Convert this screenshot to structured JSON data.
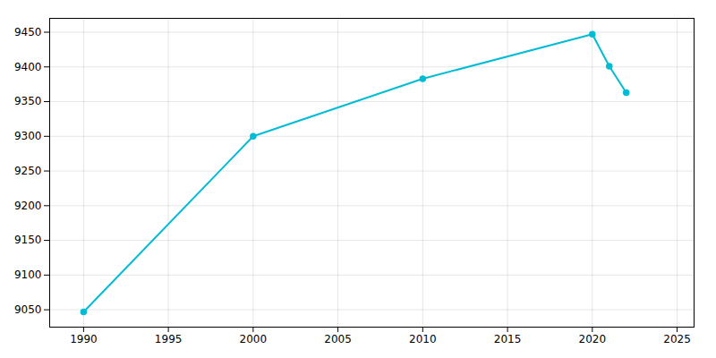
{
  "chart_data": {
    "type": "line",
    "x": [
      1990,
      2000,
      2010,
      2020,
      2021,
      2022
    ],
    "values": [
      9047,
      9300,
      9383,
      9447,
      9401,
      9363
    ],
    "color": "#00BCD4",
    "marker": "circle",
    "xlim": [
      1988,
      2026
    ],
    "ylim": [
      9025,
      9470
    ],
    "xticks": [
      1990,
      1995,
      2000,
      2005,
      2010,
      2015,
      2020,
      2025
    ],
    "yticks": [
      9050,
      9100,
      9150,
      9200,
      9250,
      9300,
      9350,
      9400,
      9450
    ],
    "grid": true
  }
}
